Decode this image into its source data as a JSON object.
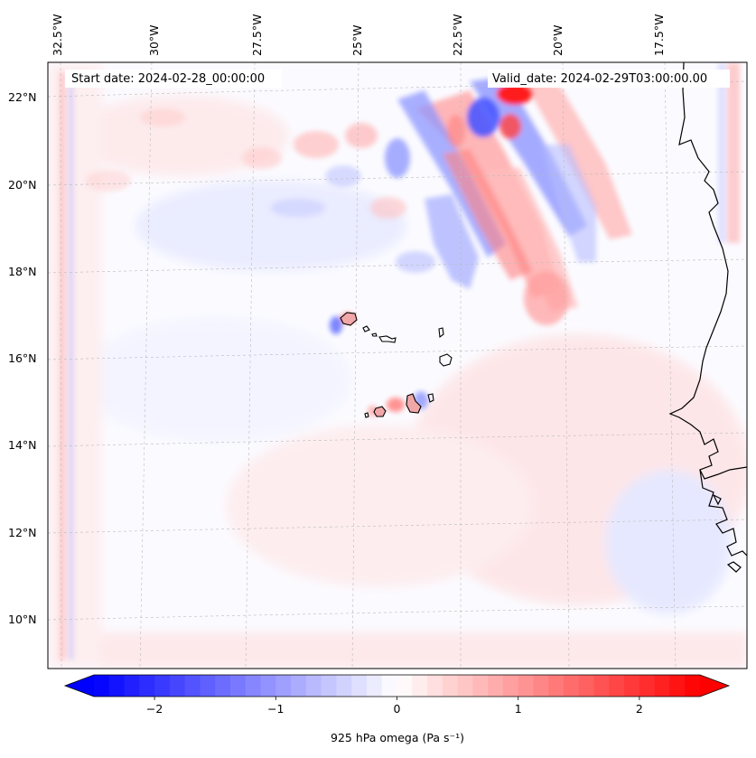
{
  "map": {
    "start_date_text": "Start date: 2024-02-28_00:00:00",
    "valid_date_text": "Valid_date: 2024-02-29T03:00:00.00",
    "longitude_labels": [
      "32.5°W",
      "30°W",
      "27.5°W",
      "25°W",
      "22.5°W",
      "20°W",
      "17.5°W"
    ],
    "latitude_labels": [
      "22°N",
      "20°N",
      "18°N",
      "16°N",
      "14°N",
      "12°N",
      "10°N"
    ],
    "gridlines": true,
    "field": "925 hPa omega",
    "region": "Cape Verde Islands and West African coast",
    "coastline_color": "#000000",
    "land_fill": "none"
  },
  "colorbar": {
    "label": "925 hPa omega (Pa s⁻¹)",
    "ticks": [
      "−2",
      "−1",
      "0",
      "1",
      "2"
    ],
    "tick_values": [
      -2,
      -1,
      0,
      1,
      2
    ],
    "range": [
      -2.5,
      2.5
    ],
    "extend": "both",
    "colormap": "bwr",
    "colors": {
      "min": "#0000ff",
      "mid": "#ffffff",
      "max": "#ff0000"
    }
  }
}
